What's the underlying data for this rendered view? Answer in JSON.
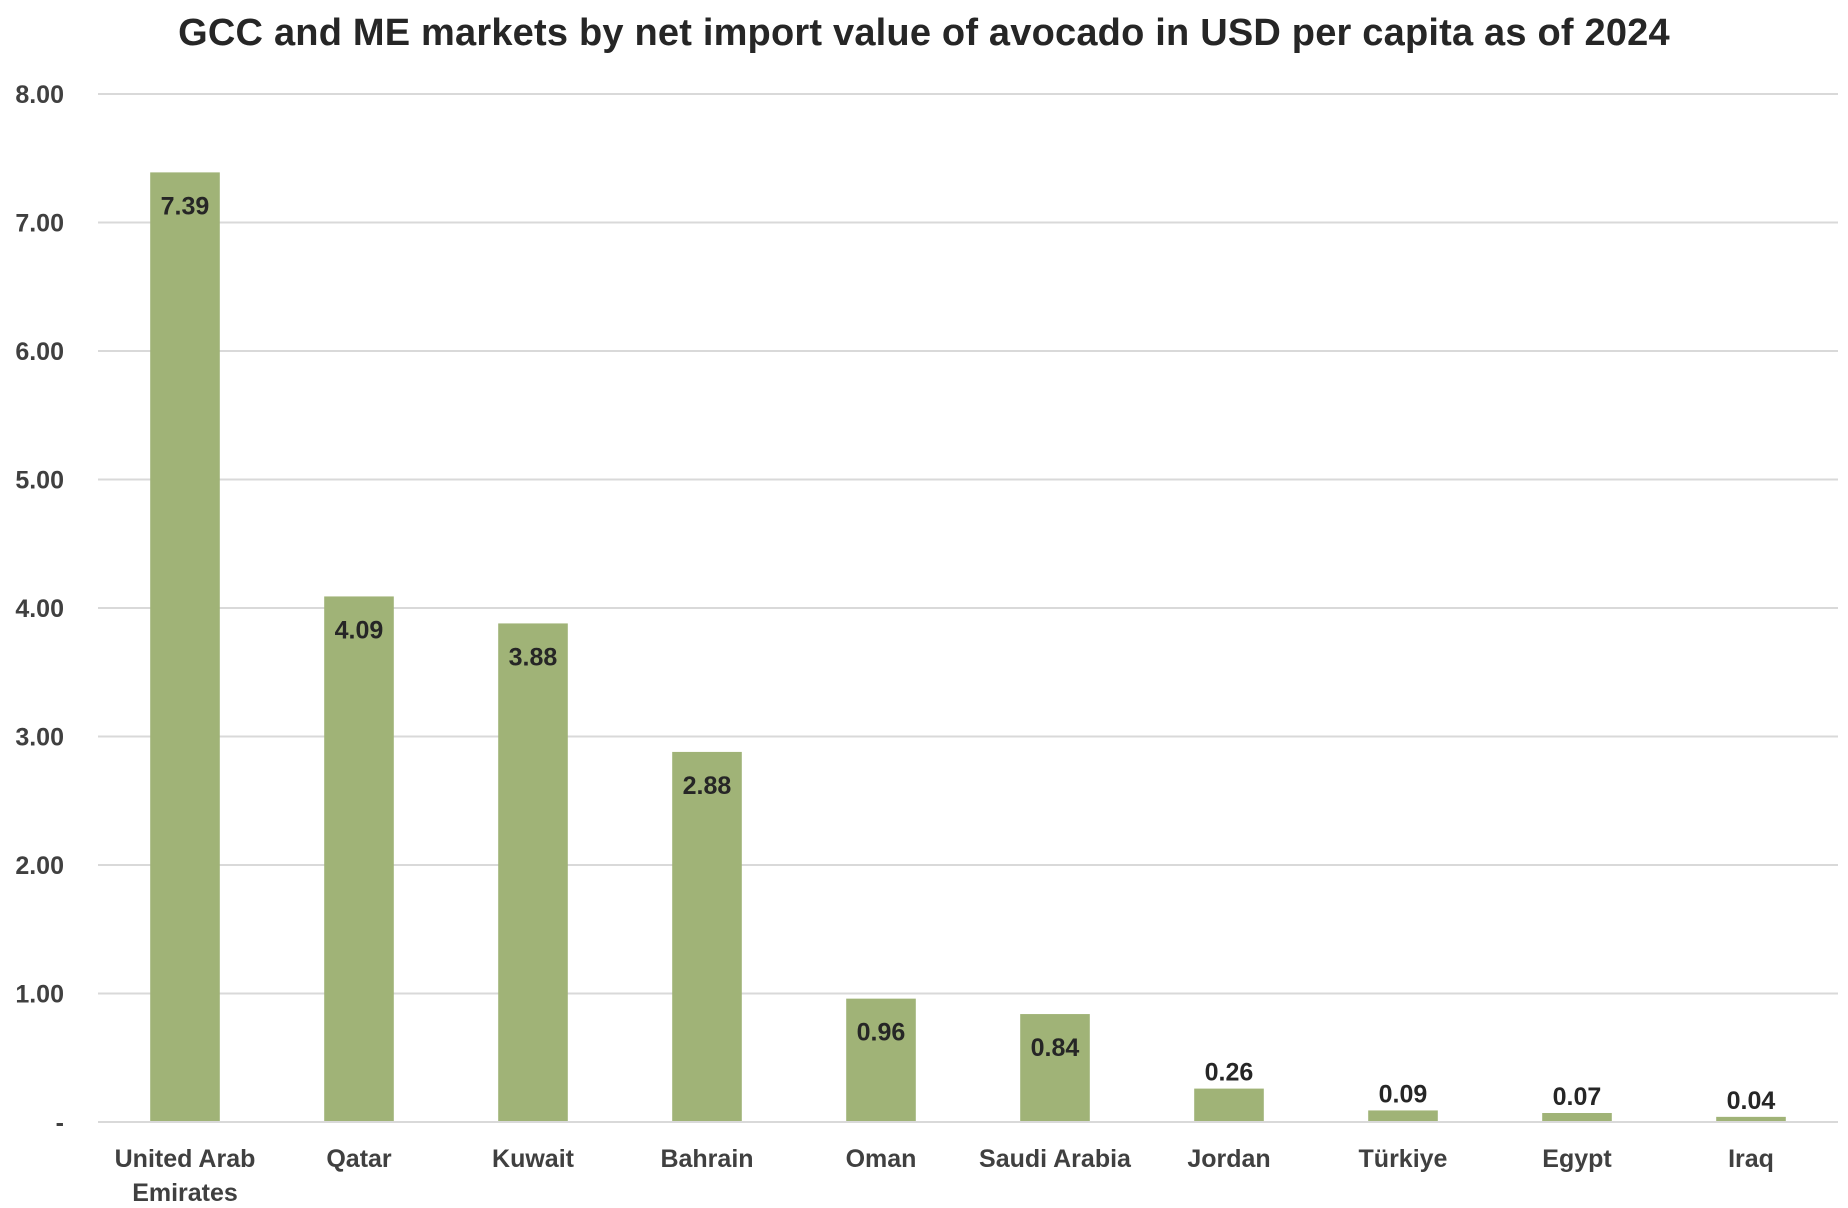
{
  "chart_data": {
    "type": "bar",
    "title": "GCC and ME markets by net import value of avocado in USD per capita as of 2024",
    "xlabel": "",
    "ylabel": "",
    "categories": [
      "United Arab Emirates",
      "Qatar",
      "Kuwait",
      "Bahrain",
      "Oman",
      "Saudi Arabia",
      "Jordan",
      "Türkiye",
      "Egypt",
      "Iraq"
    ],
    "values": [
      7.39,
      4.09,
      3.88,
      2.88,
      0.96,
      0.84,
      0.26,
      0.09,
      0.07,
      0.04
    ],
    "data_labels": [
      "7.39",
      "4.09",
      "3.88",
      "2.88",
      "0.96",
      "0.84",
      "0.26",
      "0.09",
      "0.07",
      "0.04"
    ],
    "ylim": [
      0,
      8
    ],
    "yticks": [
      0,
      1,
      2,
      3,
      4,
      5,
      6,
      7,
      8
    ],
    "ytick_labels": [
      "-",
      "1.00",
      "2.00",
      "3.00",
      "4.00",
      "5.00",
      "6.00",
      "7.00",
      "8.00"
    ],
    "grid": true,
    "legend": "none",
    "bar_color": "#a0b377",
    "grid_color": "#d9d9d9"
  }
}
